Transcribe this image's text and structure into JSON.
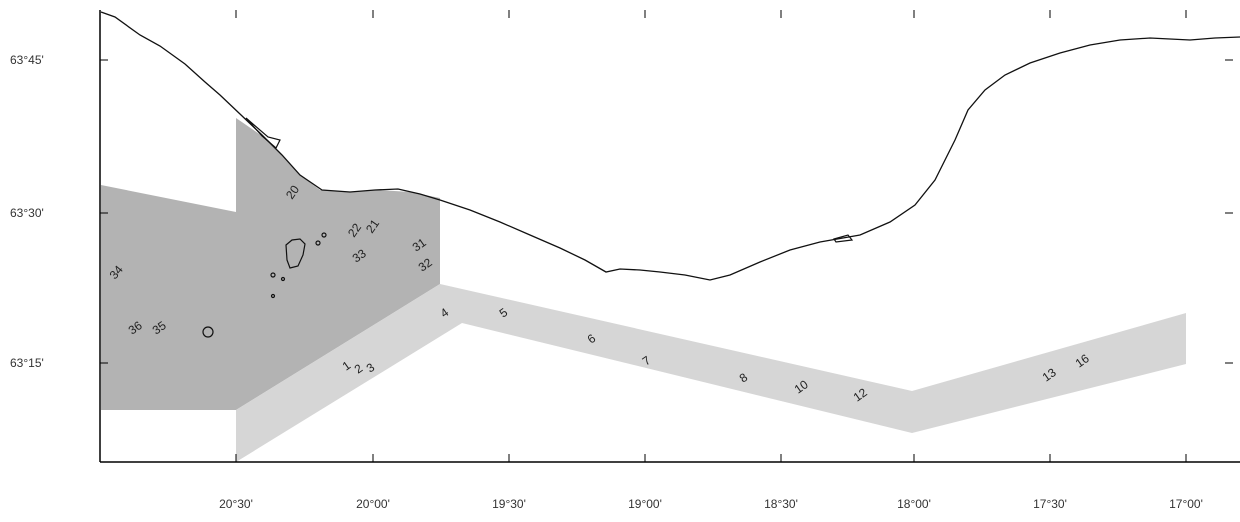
{
  "map": {
    "y_axis_labels": [
      "63°45'",
      "63°30'",
      "63°15'"
    ],
    "x_axis_labels": [
      "20°30'",
      "20°00'",
      "19°30'",
      "19°00'",
      "18°30'",
      "18°00'",
      "17°30'",
      "17°00'"
    ],
    "station_labels": [
      "20",
      "22",
      "21",
      "31",
      "33",
      "32",
      "34",
      "36",
      "35",
      "4",
      "5",
      "6",
      "7",
      "8",
      "10",
      "12",
      "13",
      "16",
      "1",
      "2",
      "3"
    ],
    "colors": {
      "dark_area": "#b3b3b3",
      "light_area": "#d6d6d6",
      "coastline": "#111111",
      "frame": "#000000"
    }
  }
}
